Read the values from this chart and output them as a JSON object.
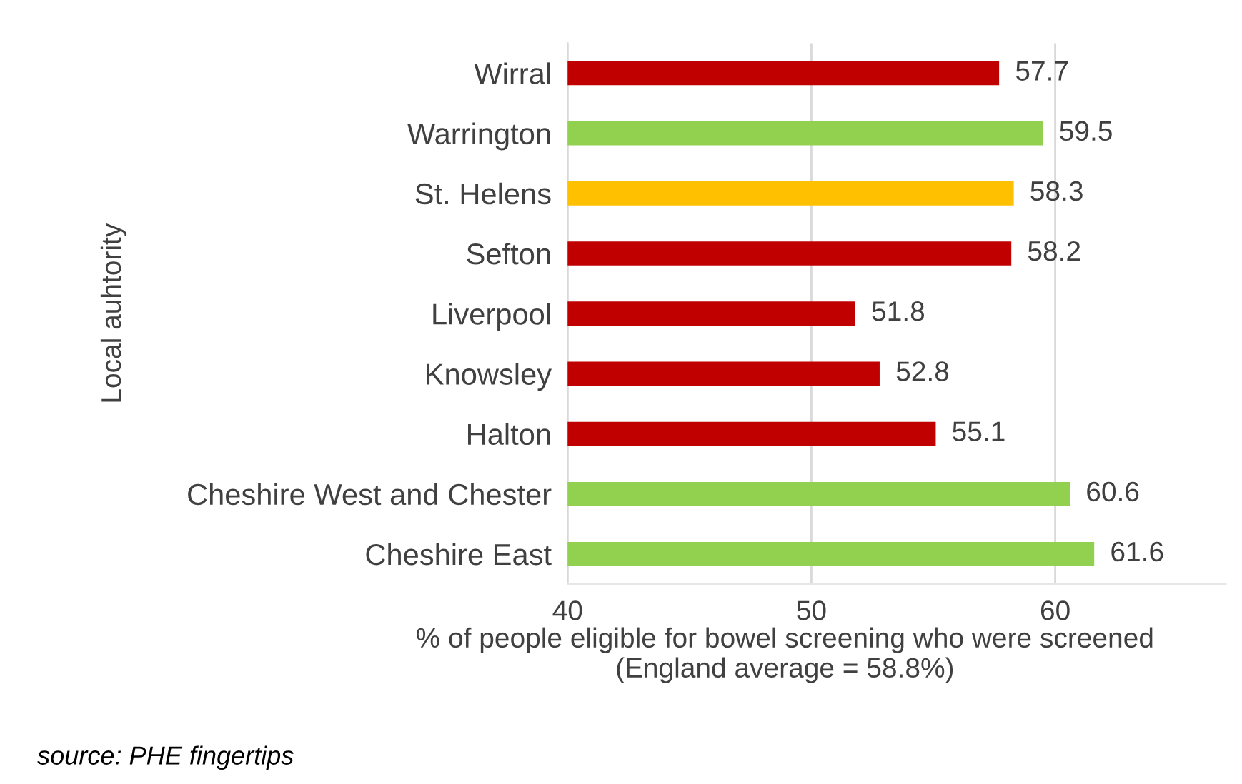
{
  "chart_data": {
    "type": "bar",
    "orientation": "horizontal",
    "categories": [
      "Wirral",
      "Warrington",
      "St. Helens",
      "Sefton",
      "Liverpool",
      "Knowsley",
      "Halton",
      "Cheshire West and Chester",
      "Cheshire East"
    ],
    "values": [
      57.7,
      59.5,
      58.3,
      58.2,
      51.8,
      52.8,
      55.1,
      60.6,
      61.6
    ],
    "colors": [
      "#c00000",
      "#92d050",
      "#ffc000",
      "#c00000",
      "#c00000",
      "#c00000",
      "#c00000",
      "#92d050",
      "#92d050"
    ],
    "xlim": [
      40,
      67
    ],
    "xticks": [
      40,
      50,
      60
    ],
    "grid": "x",
    "data_labels": true,
    "xlabel": "% of people eligible for bowel screening who were screened\n(England average = 58.8%)",
    "ylabel": "Local auhtority",
    "annotations": [
      "source: PHE fingertips"
    ]
  }
}
